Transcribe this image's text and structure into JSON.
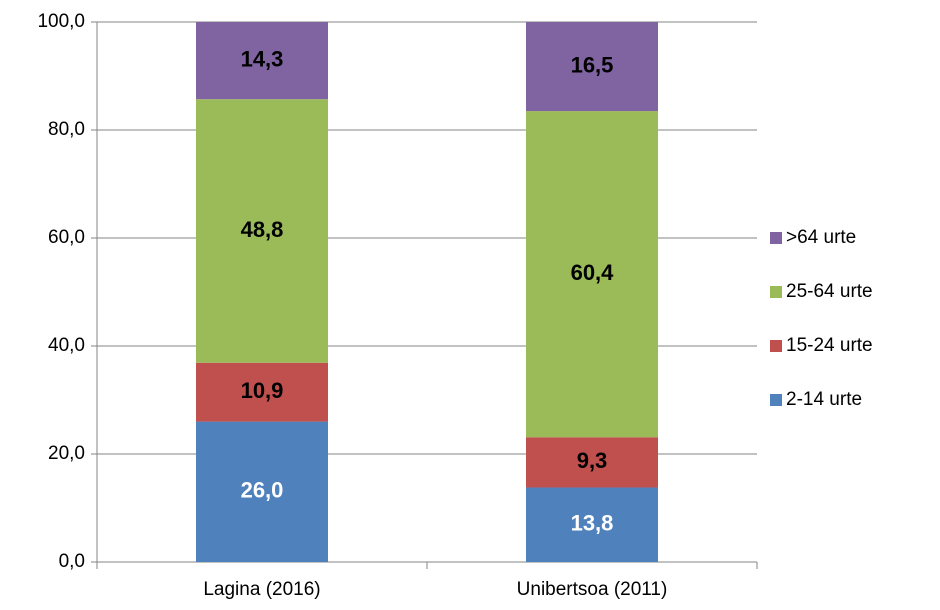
{
  "chart_data": {
    "type": "stacked_bar",
    "categories": [
      "Lagina (2016)",
      "Unibertsoa (2011)"
    ],
    "series": [
      {
        "name": "2-14 urte",
        "color": "#4f81bd",
        "label_color": "#ffffff",
        "values": [
          26.0,
          13.8
        ],
        "value_labels": [
          "26,0",
          "13,8"
        ]
      },
      {
        "name": "15-24 urte",
        "color": "#c0504d",
        "label_color": "#000000",
        "values": [
          10.9,
          9.3
        ],
        "value_labels": [
          "10,9",
          "9,3"
        ]
      },
      {
        "name": "25-64 urte",
        "color": "#9bbb59",
        "label_color": "#000000",
        "values": [
          48.8,
          60.4
        ],
        "value_labels": [
          "48,8",
          "60,4"
        ]
      },
      {
        "name": ">64 urte",
        "color": "#8064a2",
        "label_color": "#000000",
        "values": [
          14.3,
          16.5
        ],
        "value_labels": [
          "14,3",
          "16,5"
        ]
      }
    ],
    "ylim": [
      0,
      100
    ],
    "yticks": [
      {
        "value": 0,
        "label": "0,0"
      },
      {
        "value": 20,
        "label": "20,0"
      },
      {
        "value": 40,
        "label": "40,0"
      },
      {
        "value": 60,
        "label": "60,0"
      },
      {
        "value": 80,
        "label": "80,0"
      },
      {
        "value": 100,
        "label": "100,0"
      }
    ],
    "grid": true,
    "legend": "right"
  }
}
